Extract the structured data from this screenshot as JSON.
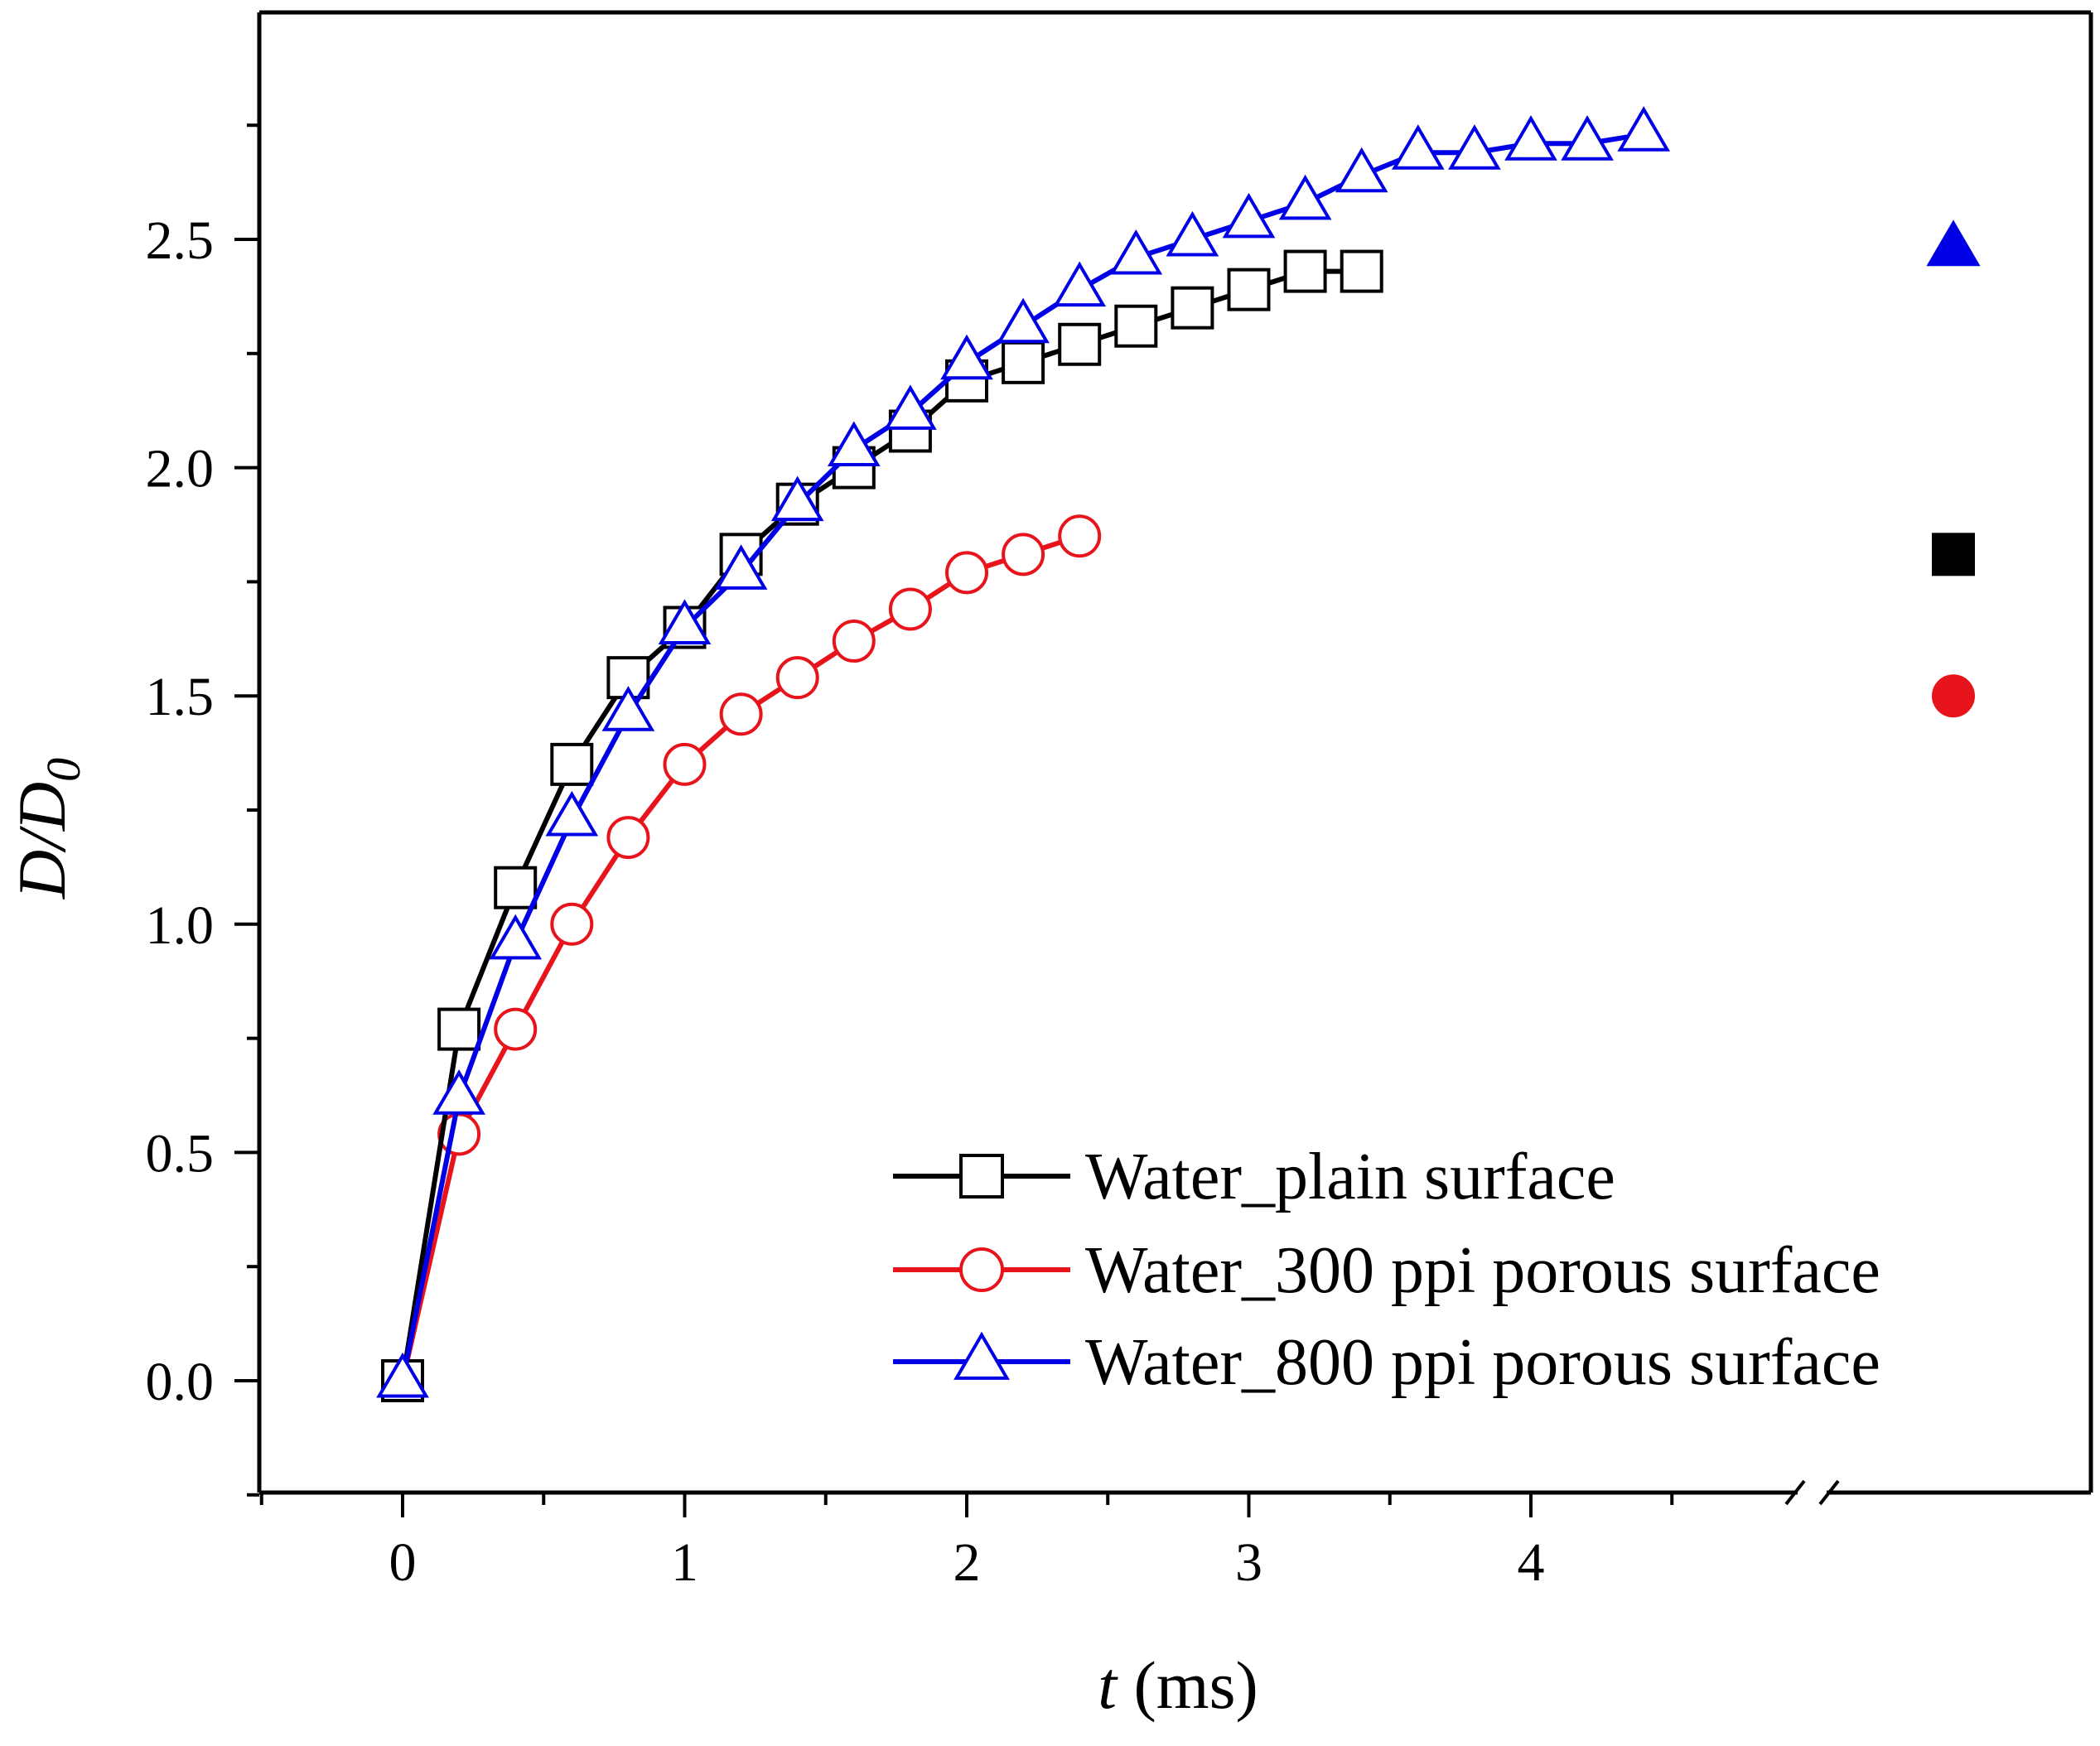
{
  "chart_data": {
    "type": "line",
    "title": "",
    "xlabel": {
      "var": "t",
      "unit": " (ms)"
    },
    "ylabel": {
      "var": "D/D",
      "sub": "0"
    },
    "xlim": [
      -0.5,
      5.0
    ],
    "ylim": [
      -0.25,
      2.95
    ],
    "x_break": 4.5,
    "x_ticks": [
      "0",
      "1",
      "2",
      "3",
      "4"
    ],
    "y_ticks": [
      "0.0",
      "0.5",
      "1.0",
      "1.5",
      "2.0",
      "2.5"
    ],
    "legend_position": "bottom-right",
    "series": [
      {
        "name": "Water_plain surface",
        "color": "#000000",
        "marker": "square",
        "x": [
          0,
          0.2,
          0.4,
          0.6,
          0.8,
          1.0,
          1.2,
          1.4,
          1.6,
          1.8,
          2.0,
          2.2,
          2.4,
          2.6,
          2.8,
          3.0,
          3.2,
          3.4
        ],
        "y": [
          0.0,
          0.77,
          1.08,
          1.35,
          1.54,
          1.65,
          1.81,
          1.92,
          2.0,
          2.08,
          2.19,
          2.23,
          2.27,
          2.31,
          2.35,
          2.39,
          2.43,
          2.43
        ],
        "break_marker_y": 1.81
      },
      {
        "name": "Water_300 ppi porous surface",
        "color": "#e8141c",
        "marker": "circle",
        "x": [
          0,
          0.2,
          0.4,
          0.6,
          0.8,
          1.0,
          1.2,
          1.4,
          1.6,
          1.8,
          2.0,
          2.2,
          2.4
        ],
        "y": [
          0.0,
          0.54,
          0.77,
          1.0,
          1.19,
          1.35,
          1.46,
          1.54,
          1.62,
          1.69,
          1.77,
          1.81,
          1.85
        ],
        "break_marker_y": 1.5
      },
      {
        "name": "Water_800 ppi porous surface",
        "color": "#0000e6",
        "marker": "triangle",
        "x": [
          0,
          0.2,
          0.4,
          0.6,
          0.8,
          1.0,
          1.2,
          1.4,
          1.6,
          1.8,
          2.0,
          2.2,
          2.4,
          2.6,
          2.8,
          3.0,
          3.2,
          3.4,
          3.6,
          3.8,
          4.0,
          4.2,
          4.4
        ],
        "y": [
          0.0,
          0.62,
          0.96,
          1.23,
          1.46,
          1.65,
          1.77,
          1.92,
          2.04,
          2.12,
          2.23,
          2.31,
          2.39,
          2.46,
          2.5,
          2.54,
          2.58,
          2.64,
          2.69,
          2.69,
          2.71,
          2.71,
          2.73
        ],
        "break_marker_y": 2.48
      }
    ]
  }
}
